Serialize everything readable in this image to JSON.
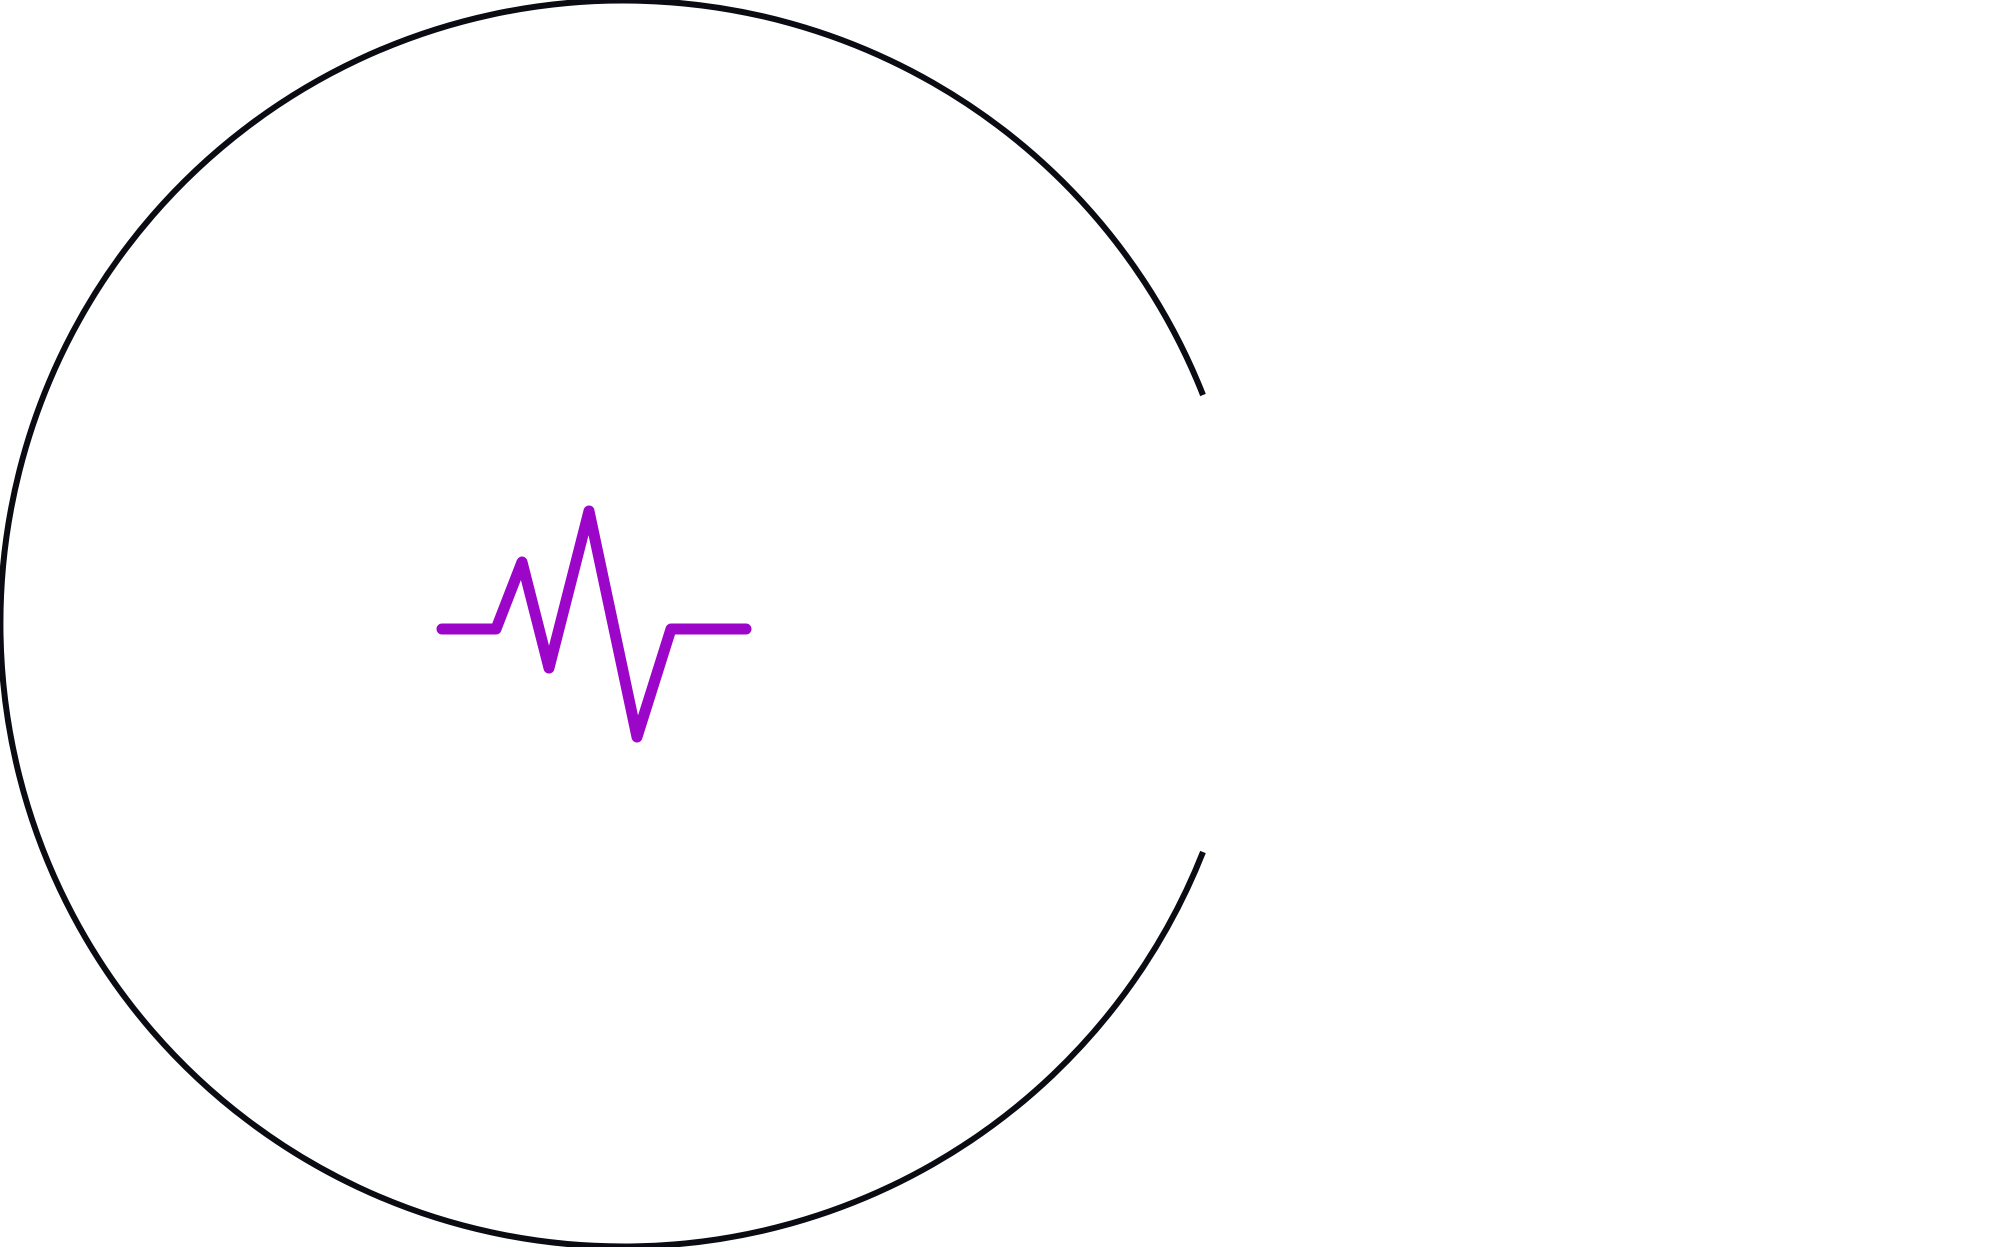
{
  "logo": {
    "ring_color": "#0b0b14",
    "pulse_color": "#9b06c9",
    "ring_icon": "open-ring-icon",
    "pulse_icon": "heartbeat-pulse-icon"
  }
}
